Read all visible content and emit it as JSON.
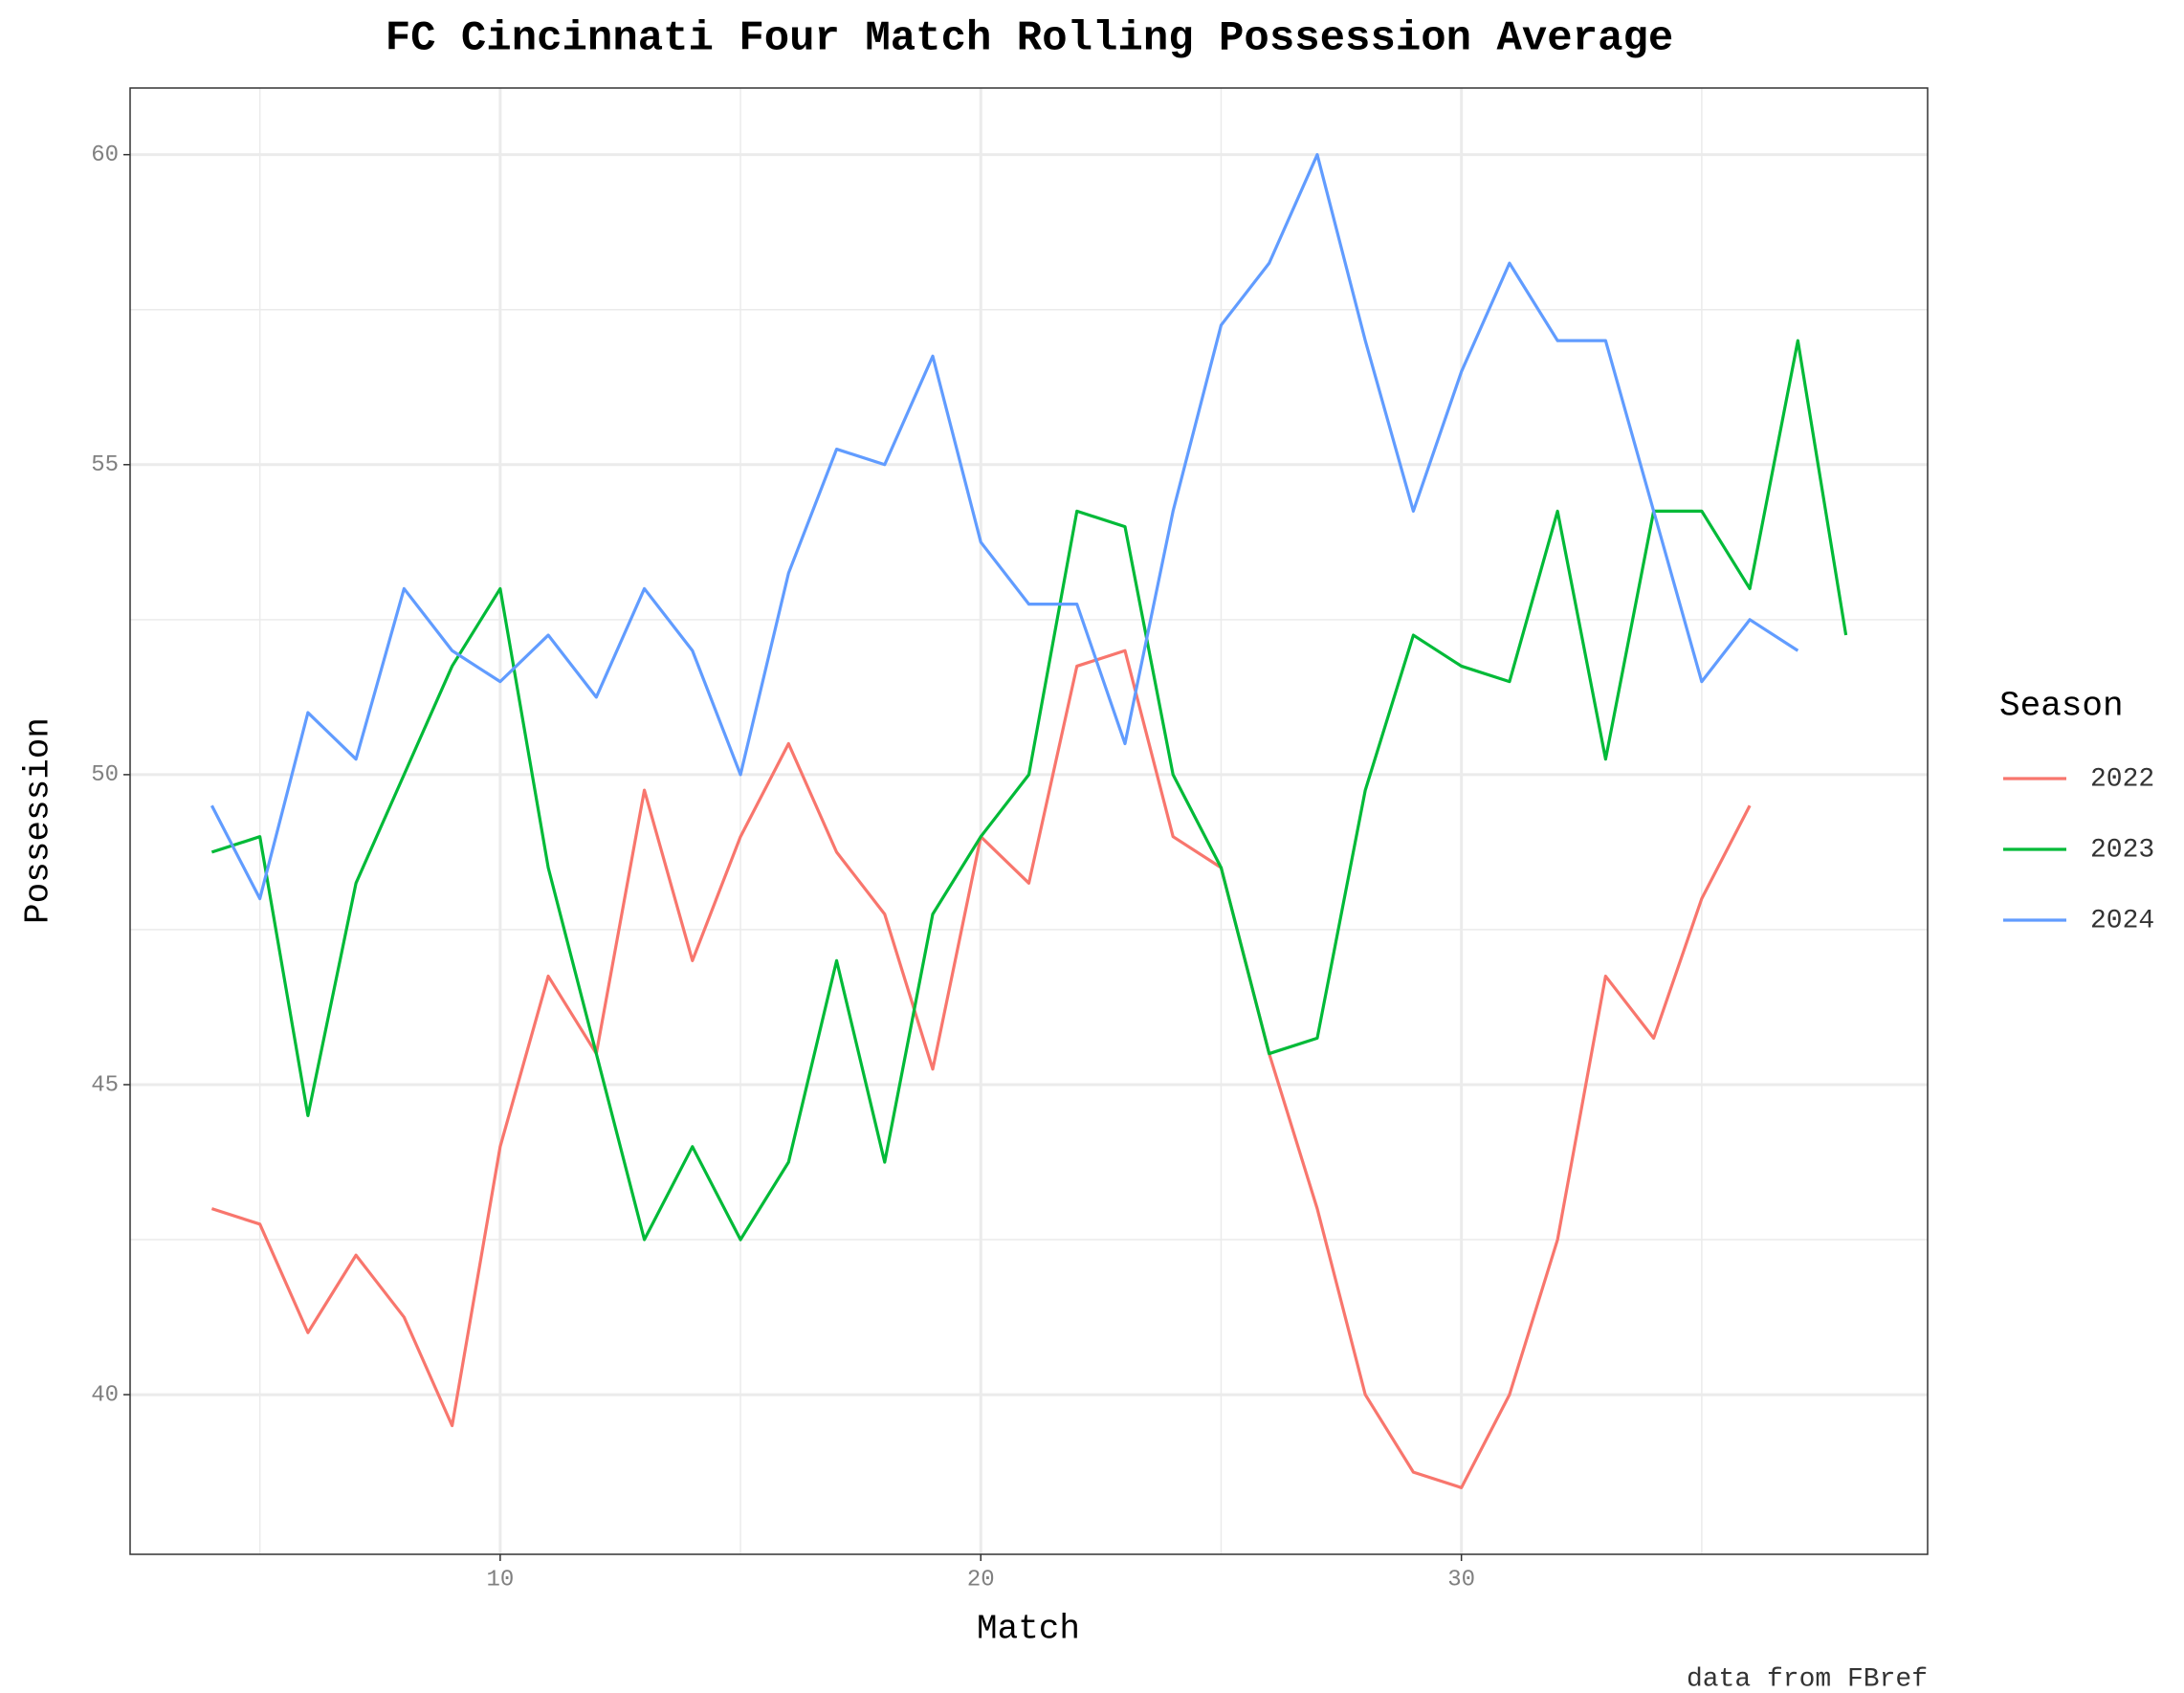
{
  "chart_data": {
    "type": "line",
    "title": "FC Cincinnati Four Match Rolling Possession Average",
    "x_label": "Match",
    "y_label": "Possession",
    "caption": "data from FBref",
    "legend_title": "Season",
    "legend_position": "right",
    "grid": true,
    "xlim": [
      2.3,
      39.7
    ],
    "xticks": [
      10,
      20,
      30
    ],
    "xminorticks": [
      5,
      15,
      25,
      35
    ],
    "ylim": [
      37.425,
      61.075
    ],
    "yticks": [
      40,
      45,
      50,
      55,
      60
    ],
    "yminorticks": [
      42.5,
      47.5,
      52.5,
      57.5
    ],
    "series": [
      {
        "name": "2022",
        "color": "#f8766d",
        "x": [
          4,
          5,
          6,
          7,
          8,
          9,
          10,
          11,
          12,
          13,
          14,
          15,
          16,
          17,
          18,
          19,
          20,
          21,
          22,
          23,
          24,
          25,
          26,
          27,
          28,
          29,
          30,
          31,
          32,
          33,
          34,
          35,
          36
        ],
        "values": [
          43,
          42.75,
          41,
          42.25,
          41.25,
          39.5,
          44,
          46.75,
          45.5,
          49.75,
          47,
          49,
          50.5,
          48.75,
          47.75,
          45.25,
          49,
          48.25,
          51.75,
          52,
          49,
          48.5,
          45.5,
          43,
          40,
          38.75,
          38.5,
          40,
          42.5,
          46.75,
          45.75,
          48,
          49.5
        ]
      },
      {
        "name": "2023",
        "color": "#00ba38",
        "x": [
          4,
          5,
          6,
          7,
          8,
          9,
          10,
          11,
          12,
          13,
          14,
          15,
          16,
          17,
          18,
          19,
          20,
          21,
          22,
          23,
          24,
          25,
          26,
          27,
          28,
          29,
          30,
          31,
          32,
          33,
          34,
          35,
          36,
          37,
          38
        ],
        "values": [
          48.75,
          49,
          44.5,
          48.25,
          50,
          51.75,
          53,
          48.5,
          45.5,
          42.5,
          44,
          42.5,
          43.75,
          47,
          43.75,
          47.75,
          49,
          50,
          54.25,
          54,
          50,
          48.5,
          45.5,
          45.75,
          49.75,
          52.25,
          51.75,
          51.5,
          54.25,
          50.25,
          54.25,
          54.25,
          53,
          57,
          52.25
        ]
      },
      {
        "name": "2024",
        "color": "#619cff",
        "x": [
          4,
          5,
          6,
          7,
          8,
          9,
          10,
          11,
          12,
          13,
          14,
          15,
          16,
          17,
          18,
          19,
          20,
          21,
          22,
          23,
          24,
          25,
          26,
          27,
          28,
          29,
          30,
          31,
          32,
          33,
          34,
          35,
          36,
          37
        ],
        "values": [
          49.5,
          48,
          51,
          50.25,
          53,
          52,
          51.5,
          52.25,
          51.25,
          53,
          52,
          50,
          53.25,
          55.25,
          55,
          56.75,
          53.75,
          52.75,
          52.75,
          50.5,
          54.25,
          57.25,
          58.25,
          60,
          57,
          54.25,
          56.5,
          58.25,
          57,
          57,
          54.25,
          51.5,
          52.5,
          52
        ]
      }
    ]
  }
}
